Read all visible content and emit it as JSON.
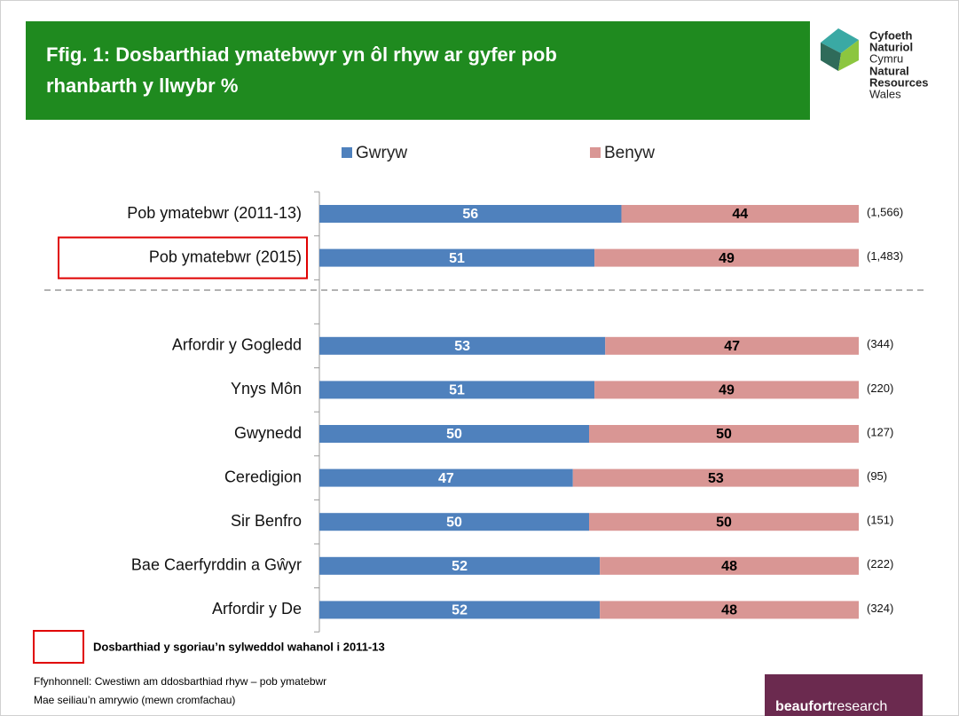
{
  "header": {
    "title_lines": [
      "Ffig. 1:   Dosbarthiad ymatebwyr yn ôl rhyw ar gyfer pob",
      "rhanbarth y llwybr %"
    ],
    "logo_lines": [
      "Cyfoeth",
      "Naturiol",
      "Cymru",
      "Natural",
      "Resources",
      "Wales"
    ]
  },
  "chart_data": {
    "type": "stacked-bar-horizontal",
    "categories": [
      "Pob ymatebwr (2011-13)",
      "Pob ymatebwr (2015)",
      null,
      "Arfordir y Gogledd",
      "Ynys Môn",
      "Gwynedd",
      "Ceredigion",
      "Sir Benfro",
      "Bae Caerfyrddin a Gŵyr",
      "Arfordir y De"
    ],
    "series": [
      {
        "name": "Gwryw",
        "color": "#4f81bd",
        "values": [
          56,
          51,
          null,
          53,
          51,
          50,
          47,
          50,
          52,
          52
        ]
      },
      {
        "name": "Benyw",
        "color": "#d99694",
        "values": [
          44,
          49,
          null,
          47,
          49,
          50,
          53,
          50,
          48,
          48
        ]
      }
    ],
    "sample_sizes": [
      "(1,566)",
      "(1,483)",
      null,
      "(344)",
      "(220)",
      "(127)",
      "(95)",
      "(151)",
      "(222)",
      "(324)"
    ],
    "highlighted": [
      1
    ],
    "xlim": [
      0,
      100
    ],
    "legend": "top"
  },
  "footer": {
    "key_text": "Dosbarthiad y sgoriau’n sylweddol wahanol i 2011-13",
    "source": "Ffynhonnell: Cwestiwn am ddosbarthiad rhyw – pob ymatebwr",
    "bases": "Mae seiliau’n amrywio (mewn cromfachau)",
    "brand": [
      "beaufort",
      "research"
    ]
  }
}
